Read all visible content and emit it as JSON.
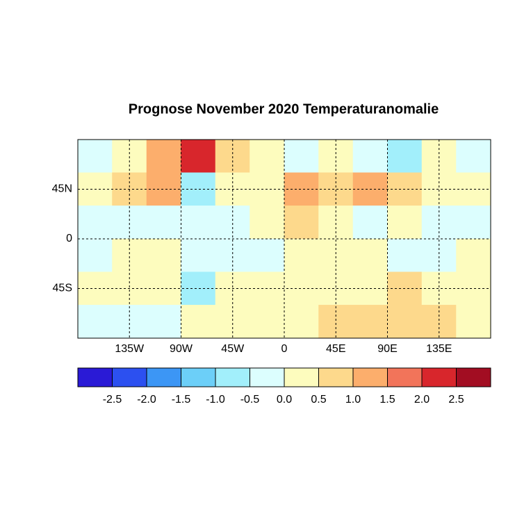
{
  "chart_data": {
    "type": "heatmap",
    "title": "Prognose November 2020 Temperaturanomalie",
    "lon_bins": [
      -180,
      -150,
      -120,
      -90,
      -60,
      -30,
      0,
      30,
      60,
      90,
      120,
      150,
      180
    ],
    "lat_bins": [
      90,
      60,
      30,
      0,
      -30,
      -60,
      -90
    ],
    "values": [
      [
        -0.3,
        0.3,
        1.0,
        2.0,
        0.5,
        0.0,
        -0.3,
        0.3,
        -0.5,
        -0.8,
        0.3,
        -0.3
      ],
      [
        0.3,
        0.5,
        1.0,
        -1.0,
        0.3,
        0.3,
        1.2,
        0.8,
        1.0,
        0.8,
        0.3,
        0.3
      ],
      [
        -0.3,
        -0.5,
        -0.5,
        -0.3,
        -0.3,
        0.3,
        0.5,
        0.3,
        -0.2,
        0.3,
        -0.3,
        -0.3
      ],
      [
        -0.3,
        0.3,
        0.3,
        -0.5,
        -0.3,
        -0.3,
        0.3,
        0.3,
        0.3,
        -0.3,
        -0.5,
        0.3
      ],
      [
        0.3,
        0.3,
        0.3,
        -0.8,
        0.3,
        0.3,
        0.3,
        0.3,
        0.3,
        0.5,
        0.3,
        0.3
      ],
      [
        -0.3,
        -0.5,
        -0.3,
        0.3,
        0.3,
        0.3,
        0.3,
        0.5,
        0.8,
        0.5,
        0.5,
        0.3
      ]
    ],
    "xlim": [
      -180,
      180
    ],
    "ylim": [
      -90,
      90
    ],
    "xticks": [
      {
        "value": -135,
        "label": "135W"
      },
      {
        "value": -90,
        "label": "90W"
      },
      {
        "value": -45,
        "label": "45W"
      },
      0,
      {
        "value": 45,
        "label": "45E"
      },
      {
        "value": 90,
        "label": "90E"
      },
      {
        "value": 135,
        "label": "135E"
      }
    ],
    "yticks": [
      {
        "value": 45,
        "label": "45N"
      },
      0,
      {
        "value": -45,
        "label": "45S"
      }
    ],
    "grid": true,
    "colorbar": {
      "colors": [
        "#2a1ad6",
        "#2c50f0",
        "#3c96f5",
        "#6ccff8",
        "#a2effb",
        "#dcfefe",
        "#fdfcbe",
        "#fdd98c",
        "#fcae6c",
        "#f2745a",
        "#d8262c",
        "#a20d22"
      ],
      "ticks": [
        -2.5,
        {
          "value": -2,
          "label": "-2.0"
        },
        -1.5,
        {
          "value": -1,
          "label": "-1.0"
        },
        -0.5,
        {
          "value": 0,
          "label": "0.0"
        },
        0.5,
        {
          "value": 1,
          "label": "1.0"
        },
        1.5,
        {
          "value": 2,
          "label": "2.0"
        },
        2.5
      ]
    }
  }
}
